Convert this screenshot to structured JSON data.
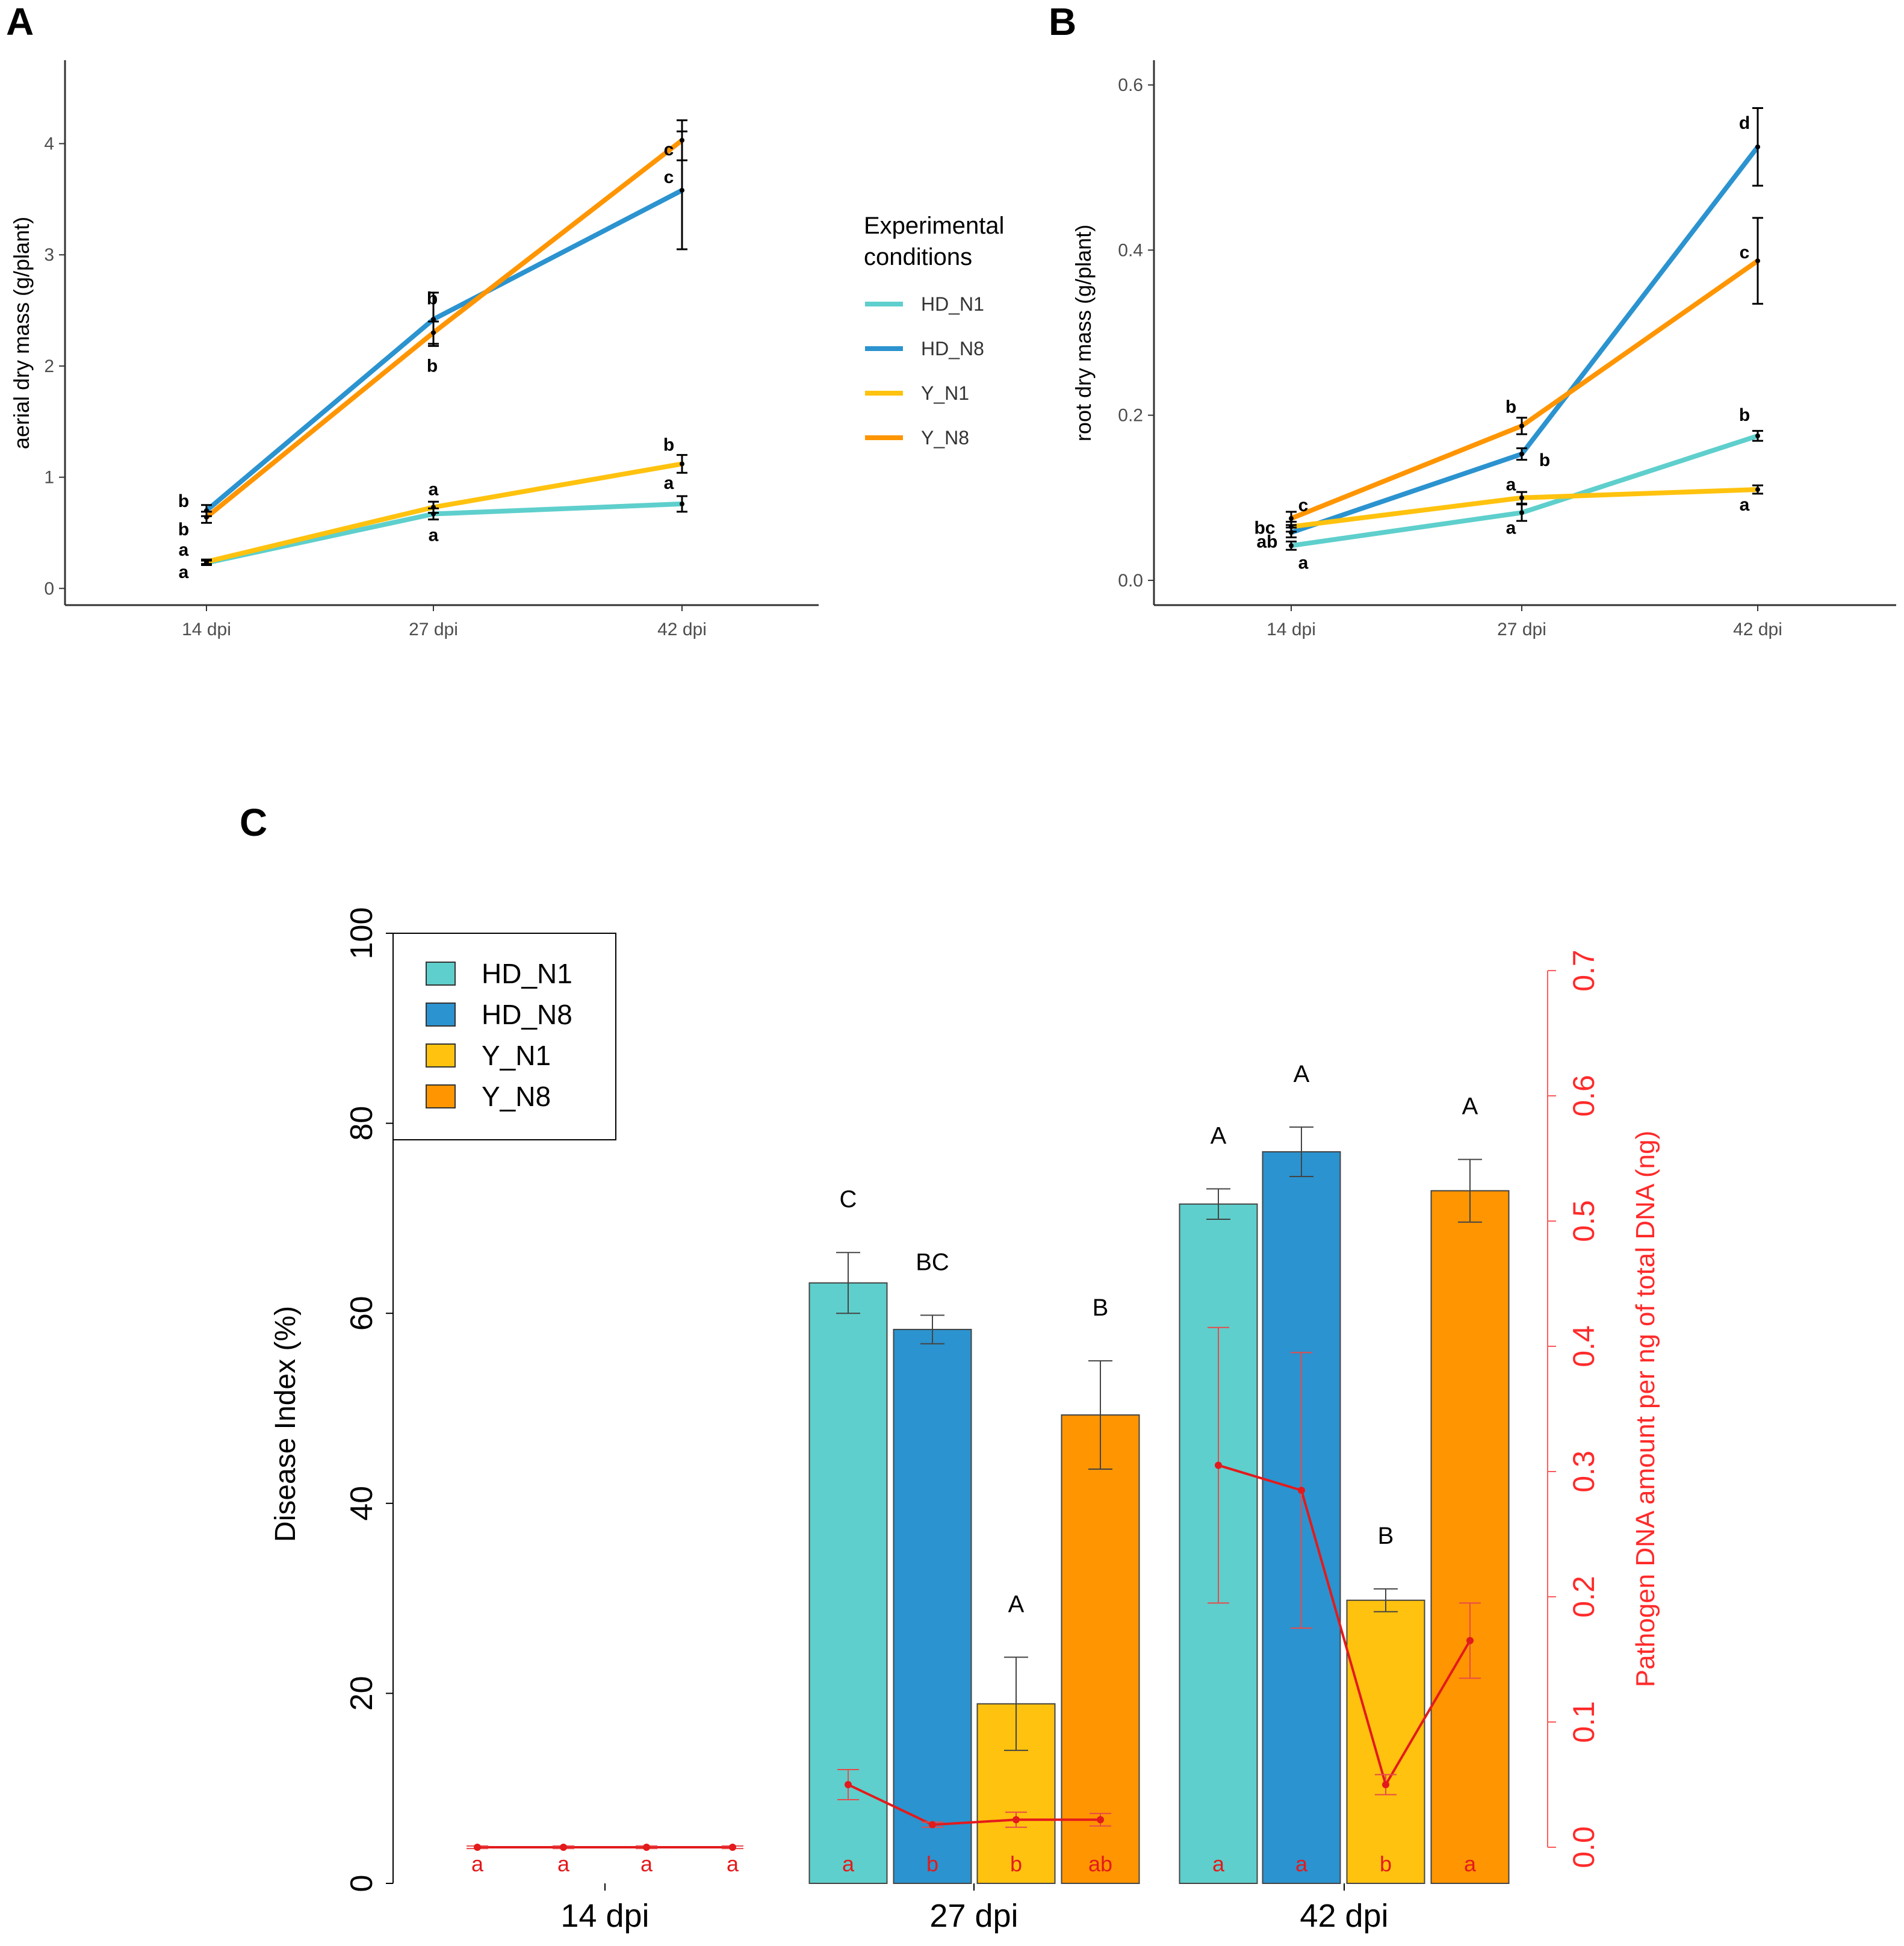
{
  "colors": {
    "HD_N1": "#5ecfcc",
    "HD_N8": "#2b93cf",
    "Y_N1": "#ffc20e",
    "Y_N8": "#ff9500",
    "pathogen": "#e31a1c"
  },
  "chart_data": [
    {
      "panel": "A",
      "type": "line",
      "title": "",
      "xlabel": "",
      "ylabel": "aerial dry mass (g/plant)",
      "categories": [
        "14 dpi",
        "27 dpi",
        "42 dpi"
      ],
      "ylim": [
        -0.15,
        4.75
      ],
      "yticks": [
        0,
        1,
        2,
        3,
        4
      ],
      "series": [
        {
          "name": "HD_N1",
          "values": [
            0.23,
            0.67,
            0.76
          ],
          "errors": [
            0.02,
            0.05,
            0.07
          ],
          "labels": [
            "a",
            "a",
            "a"
          ]
        },
        {
          "name": "HD_N8",
          "values": [
            0.7,
            2.42,
            3.58
          ],
          "errors": [
            0.05,
            0.24,
            0.53
          ],
          "labels": [
            "b",
            "b",
            "c"
          ]
        },
        {
          "name": "Y_N1",
          "values": [
            0.24,
            0.73,
            1.12
          ],
          "errors": [
            0.02,
            0.05,
            0.08
          ],
          "labels": [
            "a",
            "a",
            "b"
          ]
        },
        {
          "name": "Y_N8",
          "values": [
            0.64,
            2.3,
            4.03
          ],
          "errors": [
            0.05,
            0.1,
            0.18
          ],
          "labels": [
            "b",
            "b",
            "c"
          ]
        }
      ]
    },
    {
      "panel": "B",
      "type": "line",
      "title": "",
      "xlabel": "",
      "ylabel": "root dry mass (g/plant)",
      "categories": [
        "14 dpi",
        "27 dpi",
        "42 dpi"
      ],
      "ylim": [
        -0.03,
        0.63
      ],
      "yticks": [
        "0.0",
        "0.2",
        "0.4",
        "0.6"
      ],
      "series": [
        {
          "name": "HD_N1",
          "values": [
            0.042,
            0.082,
            0.175
          ],
          "errors": [
            0.005,
            0.01,
            0.006
          ],
          "labels": [
            "a",
            "a",
            "b"
          ]
        },
        {
          "name": "HD_N8",
          "values": [
            0.058,
            0.153,
            0.525
          ],
          "errors": [
            0.006,
            0.007,
            0.047
          ],
          "labels": [
            "ab",
            "b",
            "d"
          ]
        },
        {
          "name": "Y_N1",
          "values": [
            0.065,
            0.1,
            0.11
          ],
          "errors": [
            0.006,
            0.007,
            0.005
          ],
          "labels": [
            "bc",
            "a",
            "a"
          ]
        },
        {
          "name": "Y_N8",
          "values": [
            0.075,
            0.187,
            0.387
          ],
          "errors": [
            0.008,
            0.01,
            0.052
          ],
          "labels": [
            "c",
            "b",
            "c"
          ]
        }
      ]
    },
    {
      "panel": "C",
      "type": "bar",
      "title": "",
      "xlabel": "",
      "ylabel": "Disease Index (%)",
      "y2label": "Pathogen DNA amount per ng of total DNA (ng)",
      "categories": [
        "14 dpi",
        "27 dpi",
        "42 dpi"
      ],
      "ylim": [
        0,
        100
      ],
      "yticks": [
        0,
        20,
        40,
        60,
        80,
        100
      ],
      "y2lim": [
        0,
        0.7
      ],
      "y2ticks": [
        "0.0",
        "0.1",
        "0.2",
        "0.3",
        "0.4",
        "0.5",
        "0.6",
        "0.7"
      ],
      "series": [
        {
          "name": "HD_N1",
          "values": [
            null,
            63.2,
            71.5
          ],
          "errors": [
            null,
            3.2,
            1.6
          ],
          "letters": [
            "",
            "C",
            "A"
          ]
        },
        {
          "name": "HD_N8",
          "values": [
            null,
            58.3,
            77.0
          ],
          "errors": [
            null,
            1.5,
            2.6
          ],
          "letters": [
            "",
            "BC",
            "A"
          ]
        },
        {
          "name": "Y_N1",
          "values": [
            null,
            18.9,
            29.8
          ],
          "errors": [
            null,
            4.9,
            1.2
          ],
          "letters": [
            "",
            "A",
            "B"
          ]
        },
        {
          "name": "Y_N8",
          "values": [
            null,
            49.3,
            72.9
          ],
          "errors": [
            null,
            5.7,
            3.3
          ],
          "letters": [
            "",
            "B",
            "A"
          ]
        }
      ],
      "pathogen_dna": {
        "values": [
          [
            0.0,
            0.0,
            0.0,
            0.0
          ],
          [
            0.05,
            0.018,
            0.022,
            0.022
          ],
          [
            0.305,
            0.285,
            0.05,
            0.165
          ]
        ],
        "errors": [
          [
            0.001,
            0.001,
            0.001,
            0.001
          ],
          [
            0.012,
            0.002,
            0.006,
            0.005
          ],
          [
            0.11,
            0.11,
            0.008,
            0.03
          ]
        ],
        "letters": [
          [
            "a",
            "a",
            "a",
            "a"
          ],
          [
            "a",
            "b",
            "b",
            "ab"
          ],
          [
            "a",
            "a",
            "b",
            "a"
          ]
        ]
      }
    }
  ],
  "panelA": {
    "letter": "A"
  },
  "panelB": {
    "letter": "B"
  },
  "panelC": {
    "letter": "C"
  },
  "legendAB": {
    "title_line1": "Experimental",
    "title_line2": "conditions"
  }
}
